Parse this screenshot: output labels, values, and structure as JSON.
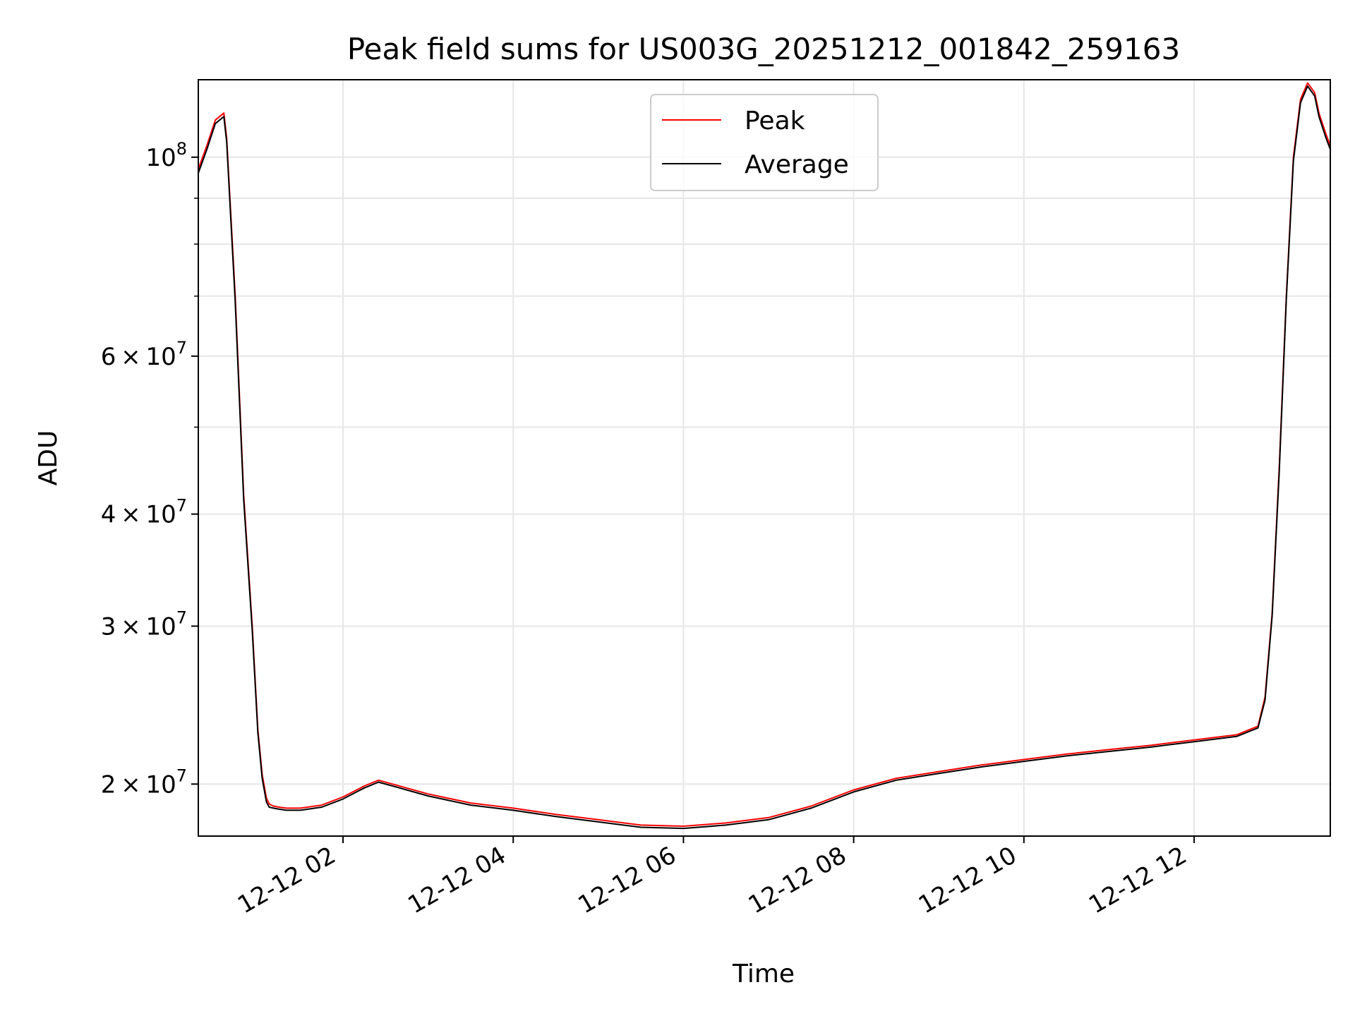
{
  "chart_data": {
    "type": "line",
    "title": "Peak field sums for US003G_20251212_001842_259163",
    "xlabel": "Time",
    "ylabel": "ADU",
    "y_scale": "log",
    "xlim": [
      "2025-12-12 00:18",
      "2025-12-12 13:36"
    ],
    "ylim": [
      17500000,
      122000000
    ],
    "grid": true,
    "legend_position": "top-center",
    "x_ticks": [
      {
        "value": "2025-12-12 02:00",
        "label": "12-12 02"
      },
      {
        "value": "2025-12-12 04:00",
        "label": "12-12 04"
      },
      {
        "value": "2025-12-12 06:00",
        "label": "12-12 06"
      },
      {
        "value": "2025-12-12 08:00",
        "label": "12-12 08"
      },
      {
        "value": "2025-12-12 10:00",
        "label": "12-12 10"
      },
      {
        "value": "2025-12-12 12:00",
        "label": "12-12 12"
      }
    ],
    "y_ticks": [
      {
        "value": 20000000,
        "mantissa": "2",
        "exponent": "7"
      },
      {
        "value": 30000000,
        "mantissa": "3",
        "exponent": "7"
      },
      {
        "value": 40000000,
        "mantissa": "4",
        "exponent": "7"
      },
      {
        "value": 60000000,
        "mantissa": "6",
        "exponent": "7"
      },
      {
        "value": 100000000,
        "mantissa": "",
        "exponent": "8"
      }
    ],
    "y_minor_ticks": [
      50000000,
      70000000,
      80000000,
      90000000
    ],
    "series": [
      {
        "name": "Peak",
        "color": "#ff0000",
        "x": [
          "2025-12-12 00:18",
          "2025-12-12 00:24",
          "2025-12-12 00:30",
          "2025-12-12 00:36",
          "2025-12-12 00:38",
          "2025-12-12 00:44",
          "2025-12-12 00:50",
          "2025-12-12 00:56",
          "2025-12-12 01:00",
          "2025-12-12 01:03",
          "2025-12-12 01:06",
          "2025-12-12 01:08",
          "2025-12-12 01:11",
          "2025-12-12 01:15",
          "2025-12-12 01:20",
          "2025-12-12 01:30",
          "2025-12-12 01:45",
          "2025-12-12 02:00",
          "2025-12-12 02:15",
          "2025-12-12 02:25",
          "2025-12-12 02:35",
          "2025-12-12 03:00",
          "2025-12-12 03:30",
          "2025-12-12 04:00",
          "2025-12-12 04:30",
          "2025-12-12 05:00",
          "2025-12-12 05:30",
          "2025-12-12 06:00",
          "2025-12-12 06:30",
          "2025-12-12 07:00",
          "2025-12-12 07:30",
          "2025-12-12 08:00",
          "2025-12-12 08:30",
          "2025-12-12 09:00",
          "2025-12-12 09:30",
          "2025-12-12 10:00",
          "2025-12-12 10:30",
          "2025-12-12 11:00",
          "2025-12-12 11:30",
          "2025-12-12 12:00",
          "2025-12-12 12:30",
          "2025-12-12 12:45",
          "2025-12-12 12:50",
          "2025-12-12 12:55",
          "2025-12-12 13:00",
          "2025-12-12 13:05",
          "2025-12-12 13:10",
          "2025-12-12 13:15",
          "2025-12-12 13:20",
          "2025-12-12 13:25",
          "2025-12-12 13:28",
          "2025-12-12 13:33",
          "2025-12-12 13:36"
        ],
        "values": [
          97000000,
          103000000,
          110000000,
          112000000,
          105000000,
          70000000,
          42000000,
          30000000,
          23000000,
          20500000,
          19300000,
          19000000,
          18900000,
          18850000,
          18800000,
          18800000,
          18950000,
          19350000,
          19900000,
          20200000,
          20000000,
          19500000,
          19050000,
          18800000,
          18500000,
          18250000,
          18000000,
          17950000,
          18100000,
          18350000,
          18900000,
          19700000,
          20300000,
          20650000,
          21000000,
          21300000,
          21600000,
          21850000,
          22100000,
          22400000,
          22700000,
          23200000,
          25000000,
          31000000,
          45000000,
          70000000,
          100000000,
          116000000,
          121000000,
          118000000,
          112000000,
          106000000,
          103000000
        ]
      },
      {
        "name": "Average",
        "color": "#000000",
        "x": [
          "2025-12-12 00:18",
          "2025-12-12 00:24",
          "2025-12-12 00:30",
          "2025-12-12 00:36",
          "2025-12-12 00:38",
          "2025-12-12 00:44",
          "2025-12-12 00:50",
          "2025-12-12 00:56",
          "2025-12-12 01:00",
          "2025-12-12 01:03",
          "2025-12-12 01:06",
          "2025-12-12 01:08",
          "2025-12-12 01:11",
          "2025-12-12 01:15",
          "2025-12-12 01:20",
          "2025-12-12 01:30",
          "2025-12-12 01:45",
          "2025-12-12 02:00",
          "2025-12-12 02:15",
          "2025-12-12 02:25",
          "2025-12-12 02:35",
          "2025-12-12 03:00",
          "2025-12-12 03:30",
          "2025-12-12 04:00",
          "2025-12-12 04:30",
          "2025-12-12 05:00",
          "2025-12-12 05:30",
          "2025-12-12 06:00",
          "2025-12-12 06:30",
          "2025-12-12 07:00",
          "2025-12-12 07:30",
          "2025-12-12 08:00",
          "2025-12-12 08:30",
          "2025-12-12 09:00",
          "2025-12-12 09:30",
          "2025-12-12 10:00",
          "2025-12-12 10:30",
          "2025-12-12 11:00",
          "2025-12-12 11:30",
          "2025-12-12 12:00",
          "2025-12-12 12:30",
          "2025-12-12 12:45",
          "2025-12-12 12:50",
          "2025-12-12 12:55",
          "2025-12-12 13:00",
          "2025-12-12 13:05",
          "2025-12-12 13:10",
          "2025-12-12 13:15",
          "2025-12-12 13:20",
          "2025-12-12 13:25",
          "2025-12-12 13:28",
          "2025-12-12 13:33",
          "2025-12-12 13:36"
        ],
        "values": [
          96000000,
          102000000,
          109000000,
          111000000,
          104000000,
          69000000,
          41500000,
          29700000,
          22800000,
          20300000,
          19100000,
          18850000,
          18800000,
          18750000,
          18700000,
          18700000,
          18850000,
          19250000,
          19800000,
          20100000,
          19900000,
          19400000,
          18950000,
          18700000,
          18400000,
          18150000,
          17900000,
          17850000,
          18000000,
          18250000,
          18800000,
          19600000,
          20200000,
          20550000,
          20900000,
          21200000,
          21500000,
          21750000,
          22000000,
          22300000,
          22600000,
          23100000,
          24800000,
          30800000,
          44500000,
          69500000,
          99000000,
          115000000,
          120000000,
          117000000,
          111000000,
          105000000,
          102000000
        ]
      }
    ]
  }
}
